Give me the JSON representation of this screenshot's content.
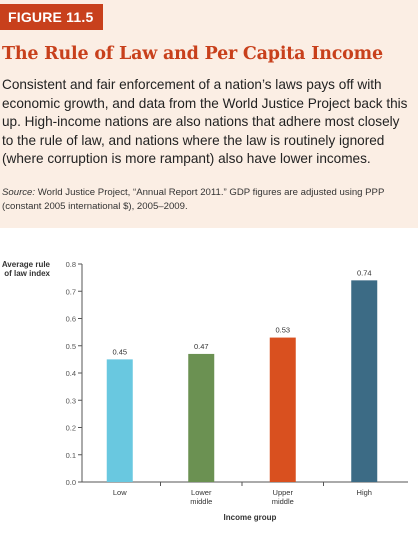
{
  "figure_label": "FIGURE 11.5",
  "title": "The Rule of Law and Per Capita Income",
  "description": "Consistent and fair enforcement of a nation’s laws pays off with economic growth, and data from the World Justice Project back this up. High-income nations are also nations that adhere most closely to the rule of law, and nations where the law is routinely ignored (where corruption is more rampant) also have lower incomes.",
  "source_label": "Source:",
  "source_text": " World Justice Project, “Annual Report 2011.” GDP figures are adjusted using PPP (constant 2005 international $), 2005–2009.",
  "colors": {
    "accent": "#c8401c",
    "header_bg": "#fbeee4"
  },
  "chart_data": {
    "type": "bar",
    "ylabel": [
      "Average rule",
      "of law index"
    ],
    "xlabel": "Income group",
    "ylim": [
      0.0,
      0.8
    ],
    "yticks": [
      "0.0",
      "0.1",
      "0.2",
      "0.3",
      "0.4",
      "0.5",
      "0.6",
      "0.7",
      "0.8"
    ],
    "categories": [
      [
        "Low"
      ],
      [
        "Lower",
        "middle"
      ],
      [
        "Upper",
        "middle"
      ],
      [
        "High"
      ]
    ],
    "values": [
      0.45,
      0.47,
      0.53,
      0.74
    ],
    "value_labels": [
      "0.45",
      "0.47",
      "0.53",
      "0.74"
    ],
    "bar_colors": [
      "#69c8e0",
      "#6b9152",
      "#d9501f",
      "#3c6b85"
    ],
    "grid": false
  }
}
